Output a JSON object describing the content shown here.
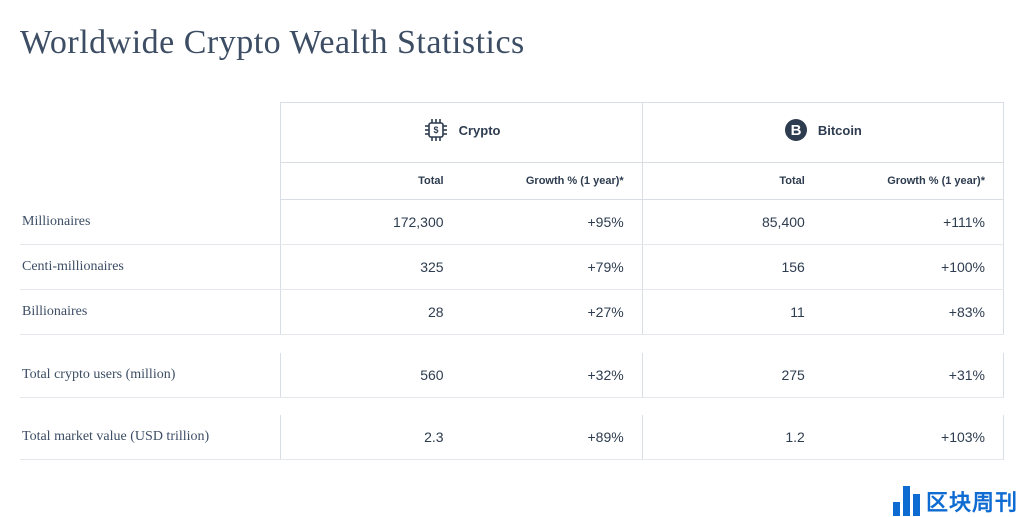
{
  "title": "Worldwide Crypto Wealth Statistics",
  "colors": {
    "title": "#3c4d64",
    "text": "#2d3c4f",
    "border": "#d9dee4",
    "row_border": "#e4e8ed",
    "icon": "#2d3c4f",
    "watermark": "#0d6bd1",
    "background": "#ffffff"
  },
  "typography": {
    "title_font": "Georgia",
    "title_size_pt": 26,
    "body_font": "Arial",
    "body_size_pt": 11,
    "label_font": "Georgia",
    "label_size_pt": 11
  },
  "table": {
    "groups": [
      {
        "key": "crypto",
        "label": "Crypto",
        "icon": "crypto-chip-icon"
      },
      {
        "key": "bitcoin",
        "label": "Bitcoin",
        "icon": "bitcoin-icon"
      }
    ],
    "sub_headers": {
      "total": "Total",
      "growth": "Growth % (1 year)*"
    },
    "sections": [
      {
        "rows": [
          {
            "label": "Millionaires",
            "crypto": {
              "total": "172,300",
              "growth": "+95%"
            },
            "bitcoin": {
              "total": "85,400",
              "growth": "+111%"
            }
          },
          {
            "label": "Centi-millionaires",
            "crypto": {
              "total": "325",
              "growth": "+79%"
            },
            "bitcoin": {
              "total": "156",
              "growth": "+100%"
            }
          },
          {
            "label": "Billionaires",
            "crypto": {
              "total": "28",
              "growth": "+27%"
            },
            "bitcoin": {
              "total": "11",
              "growth": "+83%"
            }
          }
        ]
      },
      {
        "rows": [
          {
            "label": "Total crypto users (million)",
            "crypto": {
              "total": "560",
              "growth": "+32%"
            },
            "bitcoin": {
              "total": "275",
              "growth": "+31%"
            }
          }
        ]
      },
      {
        "rows": [
          {
            "label": "Total market value (USD trillion)",
            "crypto": {
              "total": "2.3",
              "growth": "+89%"
            },
            "bitcoin": {
              "total": "1.2",
              "growth": "+103%"
            }
          }
        ]
      }
    ]
  },
  "watermark": {
    "text": "区块周刊"
  }
}
